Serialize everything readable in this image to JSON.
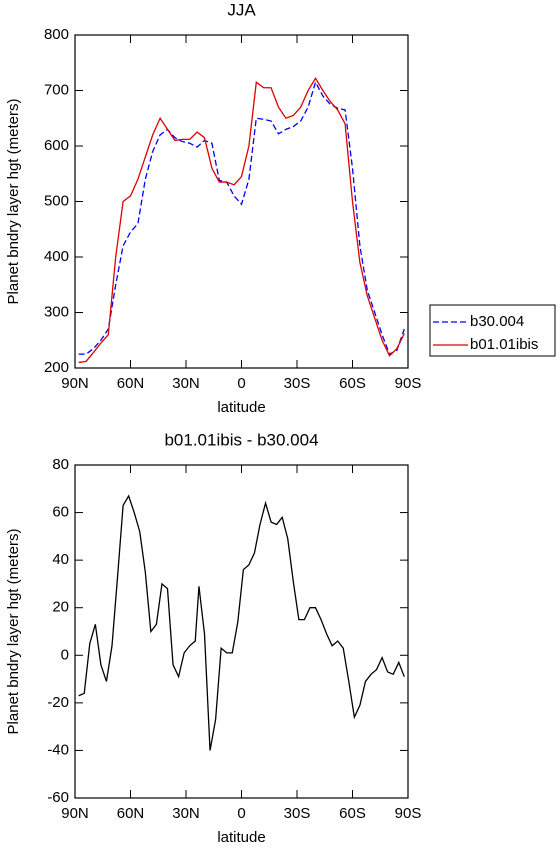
{
  "chart_data": [
    {
      "type": "line",
      "title": "JJA",
      "x_label": "latitude",
      "y_label": "Planet bndry layer hgt (meters)",
      "x": [
        88,
        84,
        80,
        76,
        72,
        68,
        64,
        60,
        56,
        52,
        48,
        44,
        40,
        36,
        32,
        28,
        24,
        20,
        16,
        12,
        8,
        4,
        0,
        -4,
        -8,
        -12,
        -16,
        -20,
        -24,
        -28,
        -32,
        -36,
        -40,
        -44,
        -48,
        -52,
        -56,
        -60,
        -64,
        -68,
        -72,
        -76,
        -80,
        -84,
        -88
      ],
      "series": [
        {
          "name": "b30.004",
          "color": "#0000ff",
          "line_style": "dashed",
          "values": [
            225,
            225,
            235,
            250,
            270,
            350,
            420,
            445,
            460,
            540,
            590,
            620,
            630,
            615,
            608,
            605,
            598,
            610,
            605,
            538,
            535,
            510,
            495,
            540,
            650,
            648,
            645,
            622,
            630,
            635,
            645,
            670,
            715,
            690,
            675,
            668,
            665,
            560,
            420,
            340,
            300,
            260,
            225,
            232,
            270
          ]
        },
        {
          "name": "b01.01ibis",
          "color": "#e00000",
          "line_style": "solid",
          "values": [
            210,
            212,
            228,
            245,
            260,
            400,
            500,
            510,
            540,
            580,
            620,
            650,
            630,
            610,
            612,
            612,
            625,
            615,
            560,
            535,
            535,
            530,
            545,
            600,
            715,
            705,
            705,
            670,
            650,
            655,
            670,
            700,
            722,
            700,
            680,
            665,
            640,
            500,
            390,
            330,
            290,
            250,
            222,
            235,
            262
          ]
        }
      ],
      "xlim": [
        90,
        -90
      ],
      "xticks": [
        {
          "value": 90,
          "label": "90N"
        },
        {
          "value": 60,
          "label": "60N"
        },
        {
          "value": 30,
          "label": "30N"
        },
        0,
        {
          "value": -30,
          "label": "30S"
        },
        {
          "value": -60,
          "label": "60S"
        },
        {
          "value": -90,
          "label": "90S"
        }
      ],
      "ylim": [
        200,
        800
      ],
      "yticks": [
        200,
        300,
        400,
        500,
        600,
        700,
        800
      ],
      "legend_position": "right"
    },
    {
      "type": "line",
      "title": "b01.01ibis - b30.004",
      "x_label": "latitude",
      "y_label": "Planet bndry layer hgt (meters)",
      "x": [
        88,
        85,
        82,
        79,
        76,
        73,
        70,
        67,
        64,
        61,
        58,
        55,
        52,
        49,
        46,
        43,
        40,
        37,
        34,
        31,
        28,
        25,
        23,
        20,
        17,
        14,
        11,
        8,
        5,
        2,
        -1,
        -4,
        -7,
        -10,
        -13,
        -16,
        -19,
        -22,
        -25,
        -28,
        -31,
        -34,
        -37,
        -40,
        -43,
        -46,
        -49,
        -52,
        -55,
        -58,
        -61,
        -64,
        -67,
        -70,
        -73,
        -76,
        -79,
        -82,
        -85,
        -88
      ],
      "values": [
        -17,
        -16,
        5,
        13,
        -4,
        -11,
        4,
        33,
        63,
        67,
        60,
        52,
        35,
        10,
        13,
        30,
        28,
        -4,
        -9,
        1,
        4,
        6,
        29,
        9,
        -40,
        -27,
        3,
        1,
        1,
        14,
        36,
        38,
        43,
        55,
        64,
        56,
        55,
        58,
        49,
        31,
        15,
        15,
        20,
        20,
        15,
        9,
        4,
        6,
        3,
        -11,
        -26,
        -21,
        -11,
        -8,
        -6,
        -1,
        -7,
        -8,
        -3,
        -9
      ],
      "color": "#000000",
      "xlim": [
        90,
        -90
      ],
      "xticks": [
        {
          "value": 90,
          "label": "90N"
        },
        {
          "value": 60,
          "label": "60N"
        },
        {
          "value": 30,
          "label": "30N"
        },
        0,
        {
          "value": -30,
          "label": "30S"
        },
        {
          "value": -60,
          "label": "60S"
        },
        {
          "value": -90,
          "label": "90S"
        }
      ],
      "ylim": [
        -60,
        80
      ],
      "yticks": [
        -60,
        -40,
        -20,
        0,
        20,
        40,
        60,
        80
      ]
    }
  ]
}
